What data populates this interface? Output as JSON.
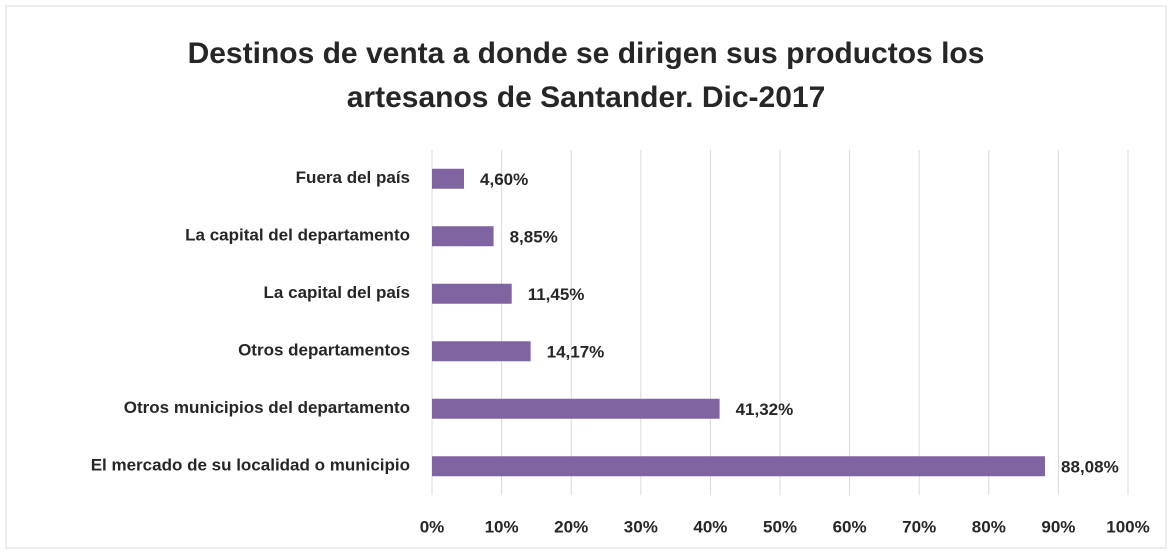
{
  "chart_data": {
    "type": "hbar",
    "title": "Destinos de venta a donde se dirigen sus productos  los artesanos de Santander. Dic-2017",
    "categories": [
      "Fuera del país",
      "La capital del departamento",
      "La capital del país",
      "Otros departamentos",
      "Otros municipios del departamento",
      "El mercado de su localidad o municipio"
    ],
    "values": [
      4.6,
      8.85,
      11.45,
      14.17,
      41.32,
      88.08
    ],
    "value_labels": [
      "4,60%",
      "8,85%",
      "11,45%",
      "14,17%",
      "41,32%",
      "88,08%"
    ],
    "color": "#8064a2",
    "xlim": [
      0,
      100
    ],
    "xticks": [
      {
        "value": 0,
        "label": "0%"
      },
      {
        "value": 10,
        "label": "10%"
      },
      {
        "value": 20,
        "label": "20%"
      },
      {
        "value": 30,
        "label": "30%"
      },
      {
        "value": 40,
        "label": "40%"
      },
      {
        "value": 50,
        "label": "50%"
      },
      {
        "value": 60,
        "label": "60%"
      },
      {
        "value": 70,
        "label": "70%"
      },
      {
        "value": 80,
        "label": "80%"
      },
      {
        "value": 90,
        "label": "90%"
      },
      {
        "value": 100,
        "label": "100%"
      }
    ],
    "grid": true
  }
}
